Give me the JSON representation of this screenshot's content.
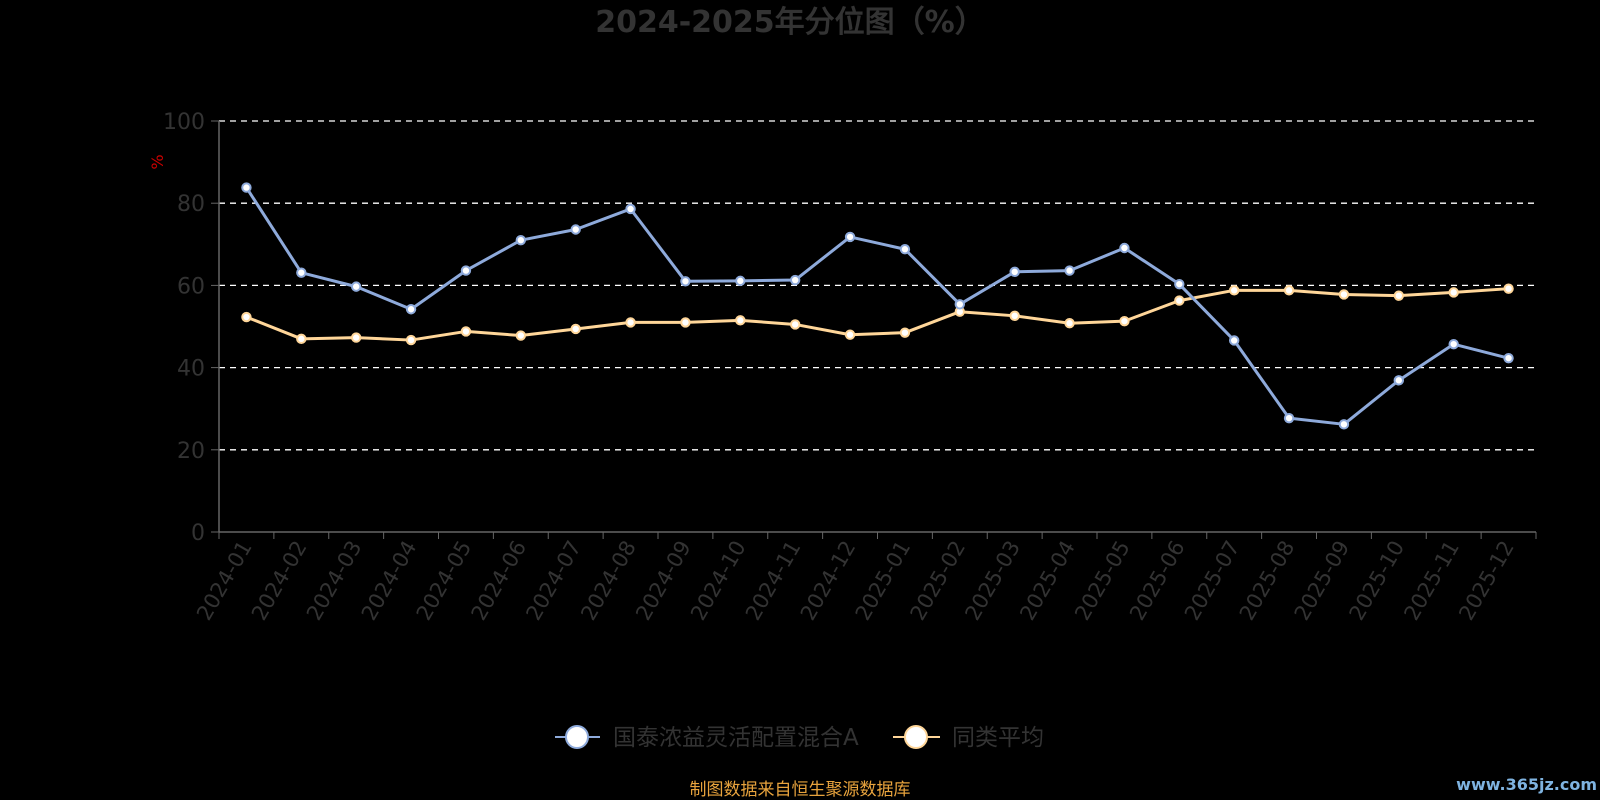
{
  "colors": {
    "background": "#000000",
    "text_muted": "#333333",
    "grid": "#ffffff",
    "axis": "#666666",
    "unit": "#cc0000",
    "series_fund": "#8eaadb",
    "series_avg": "#ffd699",
    "source": "#e8a33d",
    "watermark": "#7fb3e0"
  },
  "chart_data": {
    "type": "line",
    "title": "2024-2025年分位图（%）",
    "ylabel": "%",
    "ylim": [
      0,
      100
    ],
    "yticks": [
      0,
      20,
      40,
      60,
      80,
      100
    ],
    "grid": true,
    "legend_position": "bottom-center",
    "categories": [
      "2024-01",
      "2024-02",
      "2024-03",
      "2024-04",
      "2024-05",
      "2024-06",
      "2024-07",
      "2024-08",
      "2024-09",
      "2024-10",
      "2024-11",
      "2024-12",
      "2025-01",
      "2025-02",
      "2025-03",
      "2025-04",
      "2025-05",
      "2025-06",
      "2025-07",
      "2025-08",
      "2025-09",
      "2025-10",
      "2025-11",
      "2025-12"
    ],
    "series": [
      {
        "name": "国泰浓益灵活配置混合A",
        "values": [
          83.8,
          63.1,
          59.7,
          54.2,
          63.6,
          71.0,
          73.6,
          78.6,
          61.0,
          61.1,
          61.3,
          71.8,
          68.8,
          55.4,
          63.3,
          63.6,
          69.1,
          60.3,
          46.6,
          27.7,
          26.2,
          36.9,
          45.7,
          42.3
        ]
      },
      {
        "name": "同类平均",
        "values": [
          52.3,
          47.0,
          47.3,
          46.7,
          48.8,
          47.8,
          49.4,
          51.0,
          51.0,
          51.5,
          50.5,
          48.0,
          48.5,
          53.6,
          52.6,
          50.8,
          51.3,
          56.3,
          58.8,
          58.8,
          57.8,
          57.5,
          58.3,
          59.2
        ]
      }
    ]
  },
  "footer": {
    "source": "制图数据来自恒生聚源数据库",
    "watermark": "www.365jz.com"
  }
}
